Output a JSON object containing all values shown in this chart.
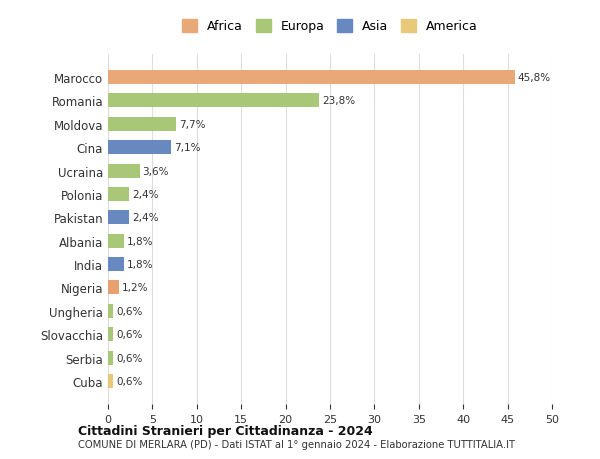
{
  "categories": [
    "Cuba",
    "Serbia",
    "Slovacchia",
    "Ungheria",
    "Nigeria",
    "India",
    "Albania",
    "Pakistan",
    "Polonia",
    "Ucraina",
    "Cina",
    "Moldova",
    "Romania",
    "Marocco"
  ],
  "values": [
    0.6,
    0.6,
    0.6,
    0.6,
    1.2,
    1.8,
    1.8,
    2.4,
    2.4,
    3.6,
    7.1,
    7.7,
    23.8,
    45.8
  ],
  "labels": [
    "0,6%",
    "0,6%",
    "0,6%",
    "0,6%",
    "1,2%",
    "1,8%",
    "1,8%",
    "2,4%",
    "2,4%",
    "3,6%",
    "7,1%",
    "7,7%",
    "23,8%",
    "45,8%"
  ],
  "colors": [
    "#E8C97A",
    "#A8C878",
    "#A8C878",
    "#A8C878",
    "#E8A070",
    "#6888C0",
    "#A8C878",
    "#6888C0",
    "#A8C878",
    "#A8C878",
    "#6888C0",
    "#A8C878",
    "#A8C878",
    "#E8A878"
  ],
  "legend_labels": [
    "Africa",
    "Europa",
    "Asia",
    "America"
  ],
  "legend_colors": [
    "#E8A878",
    "#A8C878",
    "#6888C0",
    "#E8C97A"
  ],
  "title1": "Cittadini Stranieri per Cittadinanza - 2024",
  "title2": "COMUNE DI MERLARA (PD) - Dati ISTAT al 1° gennaio 2024 - Elaborazione TUTTITALIA.IT",
  "xlim": [
    0,
    50
  ],
  "xticks": [
    0,
    5,
    10,
    15,
    20,
    25,
    30,
    35,
    40,
    45,
    50
  ],
  "bg_color": "#ffffff",
  "grid_color": "#dddddd",
  "bar_height": 0.6
}
